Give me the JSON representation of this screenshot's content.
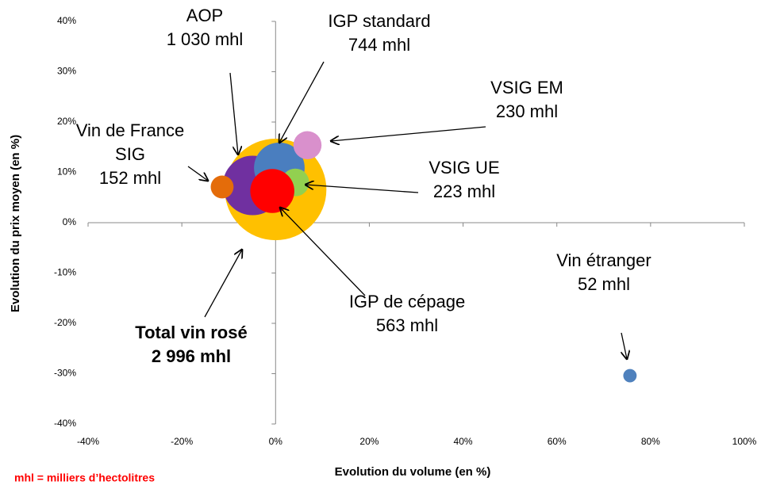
{
  "chart_data": {
    "type": "bubble",
    "xlabel": "Evolution du volume (en %)",
    "ylabel": "Evolution du prix moyen (en %)",
    "note": "mhl = milliers d’hectolitres",
    "xlim": [
      -40,
      100
    ],
    "xticks": [
      {
        "value": -40,
        "label": "-40%"
      },
      {
        "value": -20,
        "label": "-20%"
      },
      {
        "value": 0,
        "label": "0%"
      },
      {
        "value": 20,
        "label": "20%"
      },
      {
        "value": 40,
        "label": "40%"
      },
      {
        "value": 60,
        "label": "60%"
      },
      {
        "value": 80,
        "label": "80%"
      },
      {
        "value": 100,
        "label": "100%"
      }
    ],
    "ylim": [
      -40,
      40
    ],
    "yticks": [
      {
        "value": -40,
        "label": "-40%"
      },
      {
        "value": -30,
        "label": "-30%"
      },
      {
        "value": -20,
        "label": "-20%"
      },
      {
        "value": -10,
        "label": "-10%"
      },
      {
        "value": 0,
        "label": "0%"
      },
      {
        "value": 10,
        "label": "10%"
      },
      {
        "value": 20,
        "label": "20%"
      },
      {
        "value": 30,
        "label": "30%"
      },
      {
        "value": 40,
        "label": "40%"
      }
    ],
    "series": [
      {
        "name": "Total vin rosé",
        "color": "#FFC000",
        "x": 0,
        "y": 6.6,
        "size": 2996,
        "value_label": "2 996 mhl"
      },
      {
        "name": "AOP",
        "color": "#7030A0",
        "x": -4.9,
        "y": 7.4,
        "size": 1030,
        "value_label": "1 030 mhl"
      },
      {
        "name": "IGP standard",
        "color": "#4A7EBF",
        "x": 0.8,
        "y": 10.9,
        "size": 744,
        "value_label": "744 mhl"
      },
      {
        "name": "VSIG EM",
        "color": "#D990CC",
        "x": 6.8,
        "y": 15.4,
        "size": 230,
        "value_label": "230 mhl"
      },
      {
        "name": "VSIG UE",
        "color": "#92D050",
        "x": 4.2,
        "y": 8.0,
        "size": 223,
        "value_label": "223 mhl"
      },
      {
        "name": "IGP de cépage",
        "color": "#FF0000",
        "x": -0.7,
        "y": 6.3,
        "size": 563,
        "value_label": "563 mhl"
      },
      {
        "name": "Vin de France SIG",
        "color": "#E46C0A",
        "x": -11.4,
        "y": 7.1,
        "size": 152,
        "value_label": "152 mhl"
      },
      {
        "name": "Vin étranger",
        "color": "#4F81BD",
        "x": 75.6,
        "y": -30.4,
        "size": 52,
        "value_label": "52 mhl"
      }
    ]
  }
}
